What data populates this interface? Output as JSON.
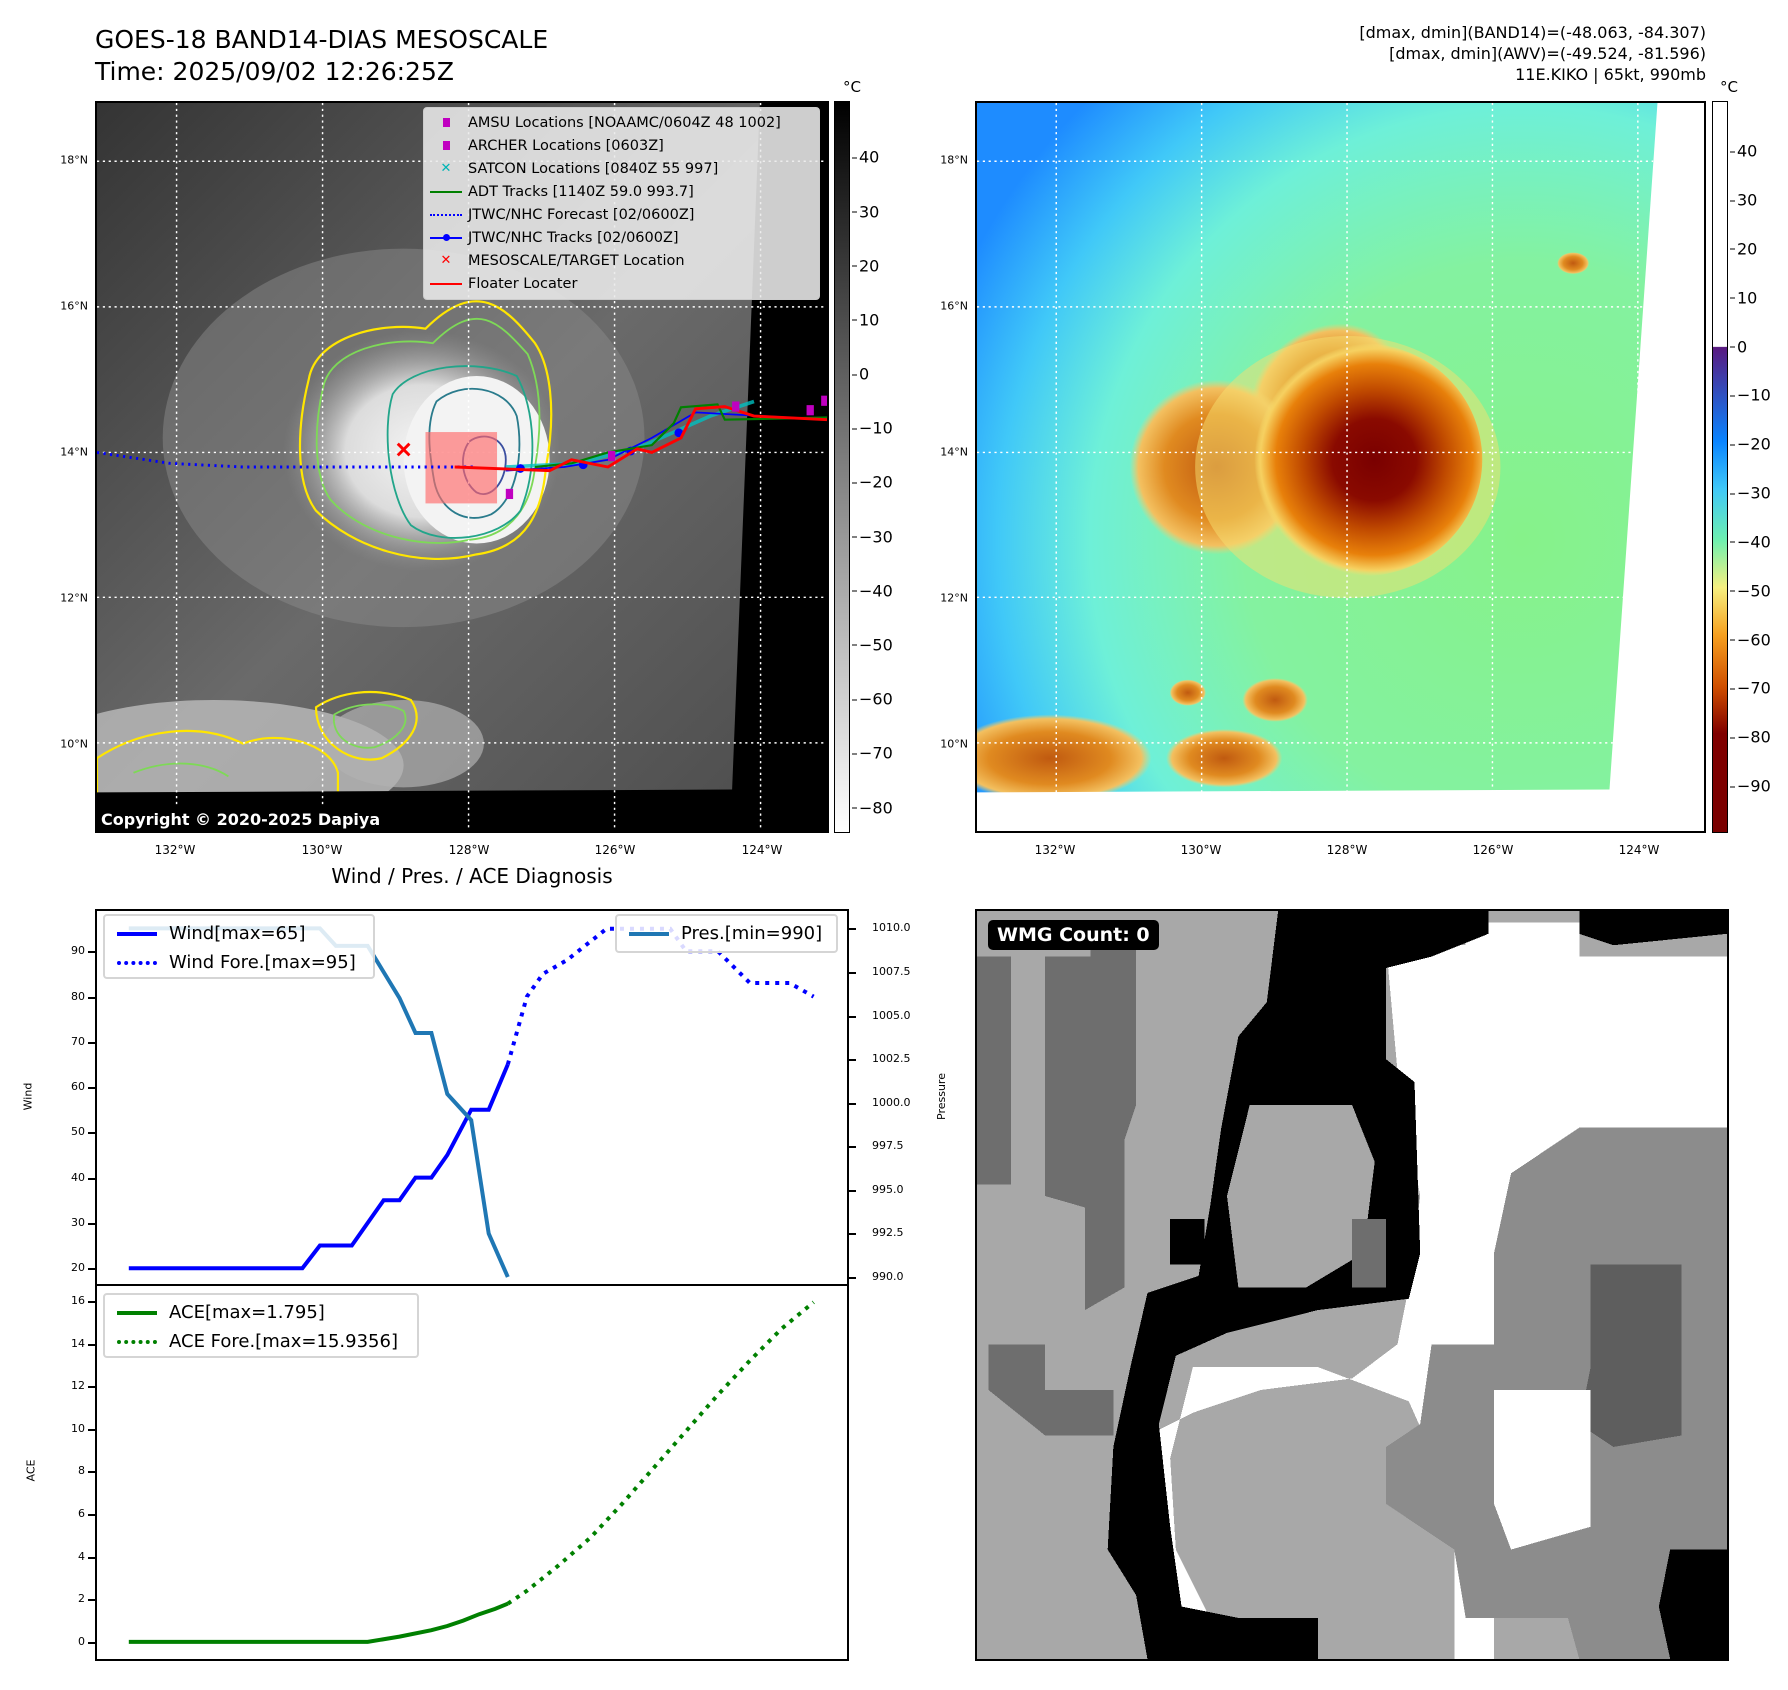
{
  "header": {
    "title": "GOES-18 BAND14-DIAS MESOSCALE",
    "time": "Time: 2025/09/02 12:26:25Z",
    "stats": [
      "[dmax, dmin](BAND14)=(-48.063, -84.307)",
      "[dmax, dmin](AWV)=(-49.524, -81.596)",
      "11E.KIKO | 65kt, 990mb"
    ]
  },
  "map_left": {
    "unit": "°C",
    "lat_ticks": [
      "18°N",
      "16°N",
      "14°N",
      "12°N",
      "10°N"
    ],
    "lon_ticks": [
      "132°W",
      "130°W",
      "128°W",
      "126°W",
      "124°W"
    ],
    "copyright": "Copyright © 2020-2025 Dapiya",
    "legend": [
      {
        "label": "AMSU Locations [NOAAMC/0604Z 48 1002]",
        "color": "#c000c0",
        "symbol": "square"
      },
      {
        "label": "ARCHER Locations [0603Z]",
        "color": "#c000c0",
        "symbol": "square"
      },
      {
        "label": "SATCON Locations [0840Z 55 997]",
        "color": "#00b5b5",
        "symbol": "x"
      },
      {
        "label": "ADT Tracks [1140Z 59.0 993.7]",
        "color": "#008000",
        "symbol": "line"
      },
      {
        "label": "JTWC/NHC Forecast [02/0600Z]",
        "color": "#0000ff",
        "symbol": "dotted"
      },
      {
        "label": "JTWC/NHC Tracks [02/0600Z]",
        "color": "#0000ff",
        "symbol": "line-dot"
      },
      {
        "label": "MESOSCALE/TARGET Location",
        "color": "#ff0000",
        "symbol": "x"
      },
      {
        "label": "Floater Locater",
        "color": "#ff0000",
        "symbol": "line"
      }
    ],
    "colorbar": {
      "ticks": [
        40,
        30,
        20,
        10,
        0,
        -10,
        -20,
        -30,
        -40,
        -50,
        -60,
        -70,
        -80
      ],
      "range": [
        -84.7,
        50.4
      ]
    }
  },
  "map_right": {
    "unit": "°C",
    "lat_ticks": [
      "18°N",
      "16°N",
      "14°N",
      "12°N",
      "10°N"
    ],
    "lon_ticks": [
      "132°W",
      "130°W",
      "128°W",
      "126°W",
      "124°W"
    ],
    "colorbar": {
      "ticks": [
        40,
        30,
        20,
        10,
        0,
        -10,
        -20,
        -30,
        -40,
        -50,
        -60,
        -70,
        -80,
        -90
      ],
      "range": [
        -99.6,
        50.3
      ]
    }
  },
  "chart_data": [
    {
      "type": "line",
      "title": "Wind / Pres. / ACE Diagnosis",
      "ylabel": "Wind",
      "y2label": "Pressure",
      "xlim": [
        -2,
        45.1
      ],
      "ylim": [
        16.5,
        98.9
      ],
      "y2lim": [
        989.6,
        1011.0
      ],
      "yticks": [
        20,
        30,
        40,
        50,
        60,
        70,
        80,
        90
      ],
      "y2ticks": [
        "990.0",
        "992.5",
        "995.0",
        "997.5",
        "1000.0",
        "1002.5",
        "1005.0",
        "1007.5",
        "1010.0"
      ],
      "series": [
        {
          "name": "Wind[max=65]",
          "axis": "left",
          "style": "solid",
          "color": "#0000ff",
          "x": [
            0,
            10.9,
            12,
            14,
            16,
            17,
            18,
            19,
            20,
            21.5,
            22.6,
            23.8
          ],
          "y": [
            20,
            20,
            25,
            25,
            35,
            35,
            40,
            40,
            45,
            55,
            55,
            65
          ]
        },
        {
          "name": "Wind Fore.[max=95]",
          "axis": "left",
          "style": "dotted",
          "color": "#0000ff",
          "x": [
            23.8,
            25,
            26,
            27.5,
            30,
            34,
            35,
            37,
            39,
            41.5,
            43
          ],
          "y": [
            65,
            80,
            85,
            88,
            95,
            95,
            90,
            90,
            83,
            83,
            80
          ]
        },
        {
          "name": "Pres.[min=990]",
          "axis": "right",
          "style": "solid",
          "color": "#1f77b4",
          "x": [
            0,
            12,
            13,
            15,
            16,
            17,
            18,
            19,
            20,
            21,
            21.5,
            22.6,
            23.8
          ],
          "y": [
            1010,
            1010,
            1009,
            1009,
            1007.5,
            1006,
            1004,
            1004,
            1000.5,
            999.5,
            999,
            992.5,
            990
          ]
        }
      ]
    },
    {
      "type": "line",
      "ylabel": "ACE",
      "xlim": [
        -2,
        45.1
      ],
      "ylim": [
        -0.8,
        16.7
      ],
      "yticks": [
        0,
        2,
        4,
        6,
        8,
        10,
        12,
        14,
        16
      ],
      "series": [
        {
          "name": "ACE[max=1.795]",
          "style": "solid",
          "color": "#008000",
          "x": [
            0,
            15,
            17,
            19,
            20,
            21,
            22,
            23,
            23.8
          ],
          "y": [
            0,
            0,
            0.25,
            0.55,
            0.75,
            1.0,
            1.3,
            1.55,
            1.795
          ]
        },
        {
          "name": "ACE Fore.[max=15.9356]",
          "style": "dotted",
          "color": "#008000",
          "x": [
            23.8,
            25,
            27,
            29,
            31,
            33,
            35,
            37,
            39,
            41,
            43
          ],
          "y": [
            1.795,
            2.4,
            3.6,
            4.9,
            6.5,
            8.2,
            9.9,
            11.6,
            13.2,
            14.7,
            15.94
          ]
        }
      ]
    }
  ],
  "wmg": {
    "label": "WMG Count: 0"
  }
}
